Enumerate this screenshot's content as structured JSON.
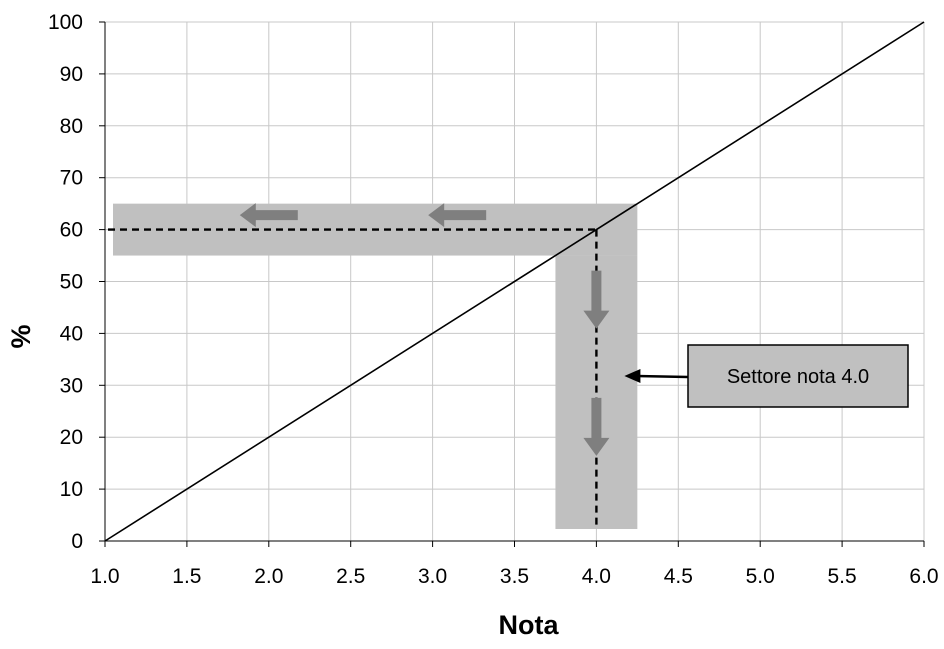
{
  "chart_data": {
    "type": "line",
    "title": "",
    "xlabel": "Nota",
    "ylabel": "%",
    "xlim": [
      1.0,
      6.0
    ],
    "ylim": [
      0,
      100
    ],
    "x_ticks": [
      "1.0",
      "1.5",
      "2.0",
      "2.5",
      "3.0",
      "3.5",
      "4.0",
      "4.5",
      "5.0",
      "5.5",
      "6.0"
    ],
    "y_ticks": [
      "0",
      "10",
      "20",
      "30",
      "40",
      "50",
      "60",
      "70",
      "80",
      "90",
      "100"
    ],
    "grid": true,
    "series": [
      {
        "x": [
          1.0,
          6.0
        ],
        "y": [
          0,
          100
        ]
      }
    ],
    "annotation": {
      "label": "Settore nota 4.0",
      "x": 4.0,
      "y": 60,
      "x_band": [
        3.75,
        4.25
      ],
      "y_band": [
        55,
        65
      ]
    },
    "colors": {
      "band": "#c0c0c0",
      "arrow": "#7f7f7f",
      "grid": "#c8c8c8",
      "line": "#000000"
    }
  }
}
